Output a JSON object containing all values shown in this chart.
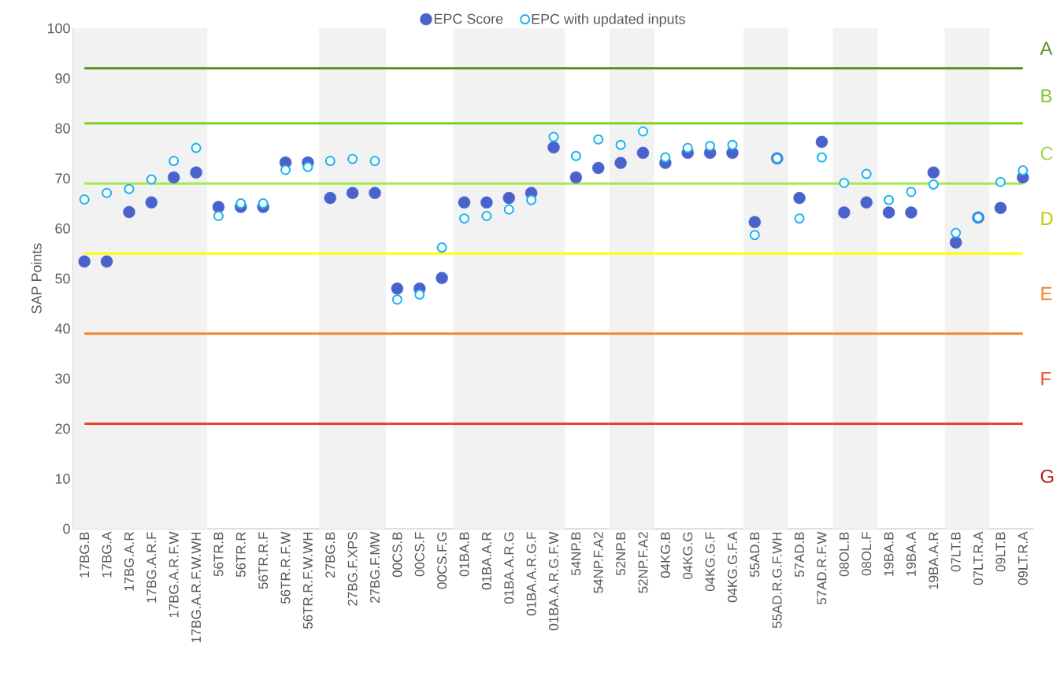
{
  "chart_data": {
    "type": "scatter",
    "ylabel": "SAP Points",
    "categories": [
      "17BG.B",
      "17BG.A",
      "17BG.A.R",
      "17BG.A.R.F",
      "17BG.A.R.F.W",
      "17BG.A.R.F.W.WH",
      "56TR.B",
      "56TR.R",
      "56TR.R.F",
      "56TR.R.F.W",
      "56TR.R.F.W.WH",
      "27BG.B",
      "27BG.F.XPS",
      "27BG.F.MW",
      "00CS.B",
      "00CS.F",
      "00CS.F.G",
      "01BA.B",
      "01BA.A.R",
      "01BA.A.R.G",
      "01BA.A.R.G.F",
      "01BA.A.R.G.F.W",
      "54NP.B",
      "54NP.F.A2",
      "52NP.B",
      "52NP.F.A2",
      "04KG.B",
      "04KG.G",
      "04KG.G.F",
      "04KG.G.F.A",
      "55AD.B",
      "55AD.R.G.F.WH",
      "57AD.B",
      "57AD.R.F.W",
      "08OL.B",
      "08OL.F",
      "19BA.B",
      "19BA.A",
      "19BA.A.R",
      "07LT.B",
      "07LT.R.A",
      "09LT.B",
      "09LT.R.A"
    ],
    "series": [
      {
        "name": "EPC Score",
        "color": "#4a63cc",
        "values": [
          53.4,
          53.4,
          63.3,
          65.2,
          70.2,
          71.2,
          64.3,
          64.3,
          64.3,
          73.2,
          73.2,
          66.1,
          67.1,
          67.1,
          48.0,
          48.0,
          50.1,
          65.2,
          65.2,
          66.1,
          67.1,
          76.2,
          70.2,
          72.1,
          73.1,
          75.1,
          73.1,
          75.1,
          75.1,
          75.1,
          61.3,
          74.0,
          66.1,
          77.3,
          63.2,
          65.2,
          63.2,
          63.2,
          71.2,
          57.2,
          62.2,
          64.1,
          70.2
        ]
      },
      {
        "name": "EPC with updated inputs",
        "color": "#1ab4ef",
        "values": [
          65.8,
          67.1,
          67.9,
          69.8,
          73.5,
          76.1,
          62.5,
          65.0,
          65.0,
          71.7,
          72.3,
          73.5,
          73.9,
          73.5,
          45.8,
          46.8,
          56.2,
          62.0,
          62.5,
          63.8,
          65.7,
          78.3,
          74.5,
          77.8,
          76.7,
          79.4,
          74.2,
          76.1,
          76.5,
          76.7,
          58.7,
          74.0,
          62.0,
          74.2,
          69.1,
          70.9,
          65.7,
          67.3,
          68.8,
          59.1,
          62.2,
          69.3,
          71.6
        ]
      }
    ],
    "ylim": [
      0,
      100
    ],
    "yticks": [
      0,
      10,
      20,
      30,
      40,
      50,
      60,
      70,
      80,
      90,
      100
    ],
    "marker": "circle",
    "legend": "top",
    "ref_lines": [
      {
        "axis": "y",
        "value": 92,
        "color": "#5a8c1c"
      },
      {
        "axis": "y",
        "value": 81,
        "color": "#7ed321"
      },
      {
        "axis": "y",
        "value": 69,
        "color": "#a8e84f"
      },
      {
        "axis": "y",
        "value": 55,
        "color": "#ffff00"
      },
      {
        "axis": "y",
        "value": 39,
        "color": "#f58220"
      },
      {
        "axis": "y",
        "value": 21,
        "color": "#e8452a"
      }
    ],
    "bands": [
      {
        "axis": "x",
        "from": "17BG.B",
        "to": "17BG.A.R.F.W.WH",
        "color": "#f2f2f2"
      },
      {
        "axis": "x",
        "from": "27BG.B",
        "to": "27BG.F.MW",
        "color": "#f2f2f2"
      },
      {
        "axis": "x",
        "from": "01BA.B",
        "to": "01BA.A.R.G.F.W",
        "color": "#f2f2f2"
      },
      {
        "axis": "x",
        "from": "52NP.B",
        "to": "52NP.F.A2",
        "color": "#f2f2f2"
      },
      {
        "axis": "x",
        "from": "55AD.B",
        "to": "55AD.R.G.F.WH",
        "color": "#f2f2f2"
      },
      {
        "axis": "x",
        "from": "08OL.B",
        "to": "08OL.F",
        "color": "#f2f2f2"
      },
      {
        "axis": "x",
        "from": "07LT.B",
        "to": "07LT.R.A",
        "color": "#f2f2f2"
      }
    ],
    "annotations": [
      "A",
      "B",
      "C",
      "D",
      "E",
      "F",
      "G"
    ]
  }
}
